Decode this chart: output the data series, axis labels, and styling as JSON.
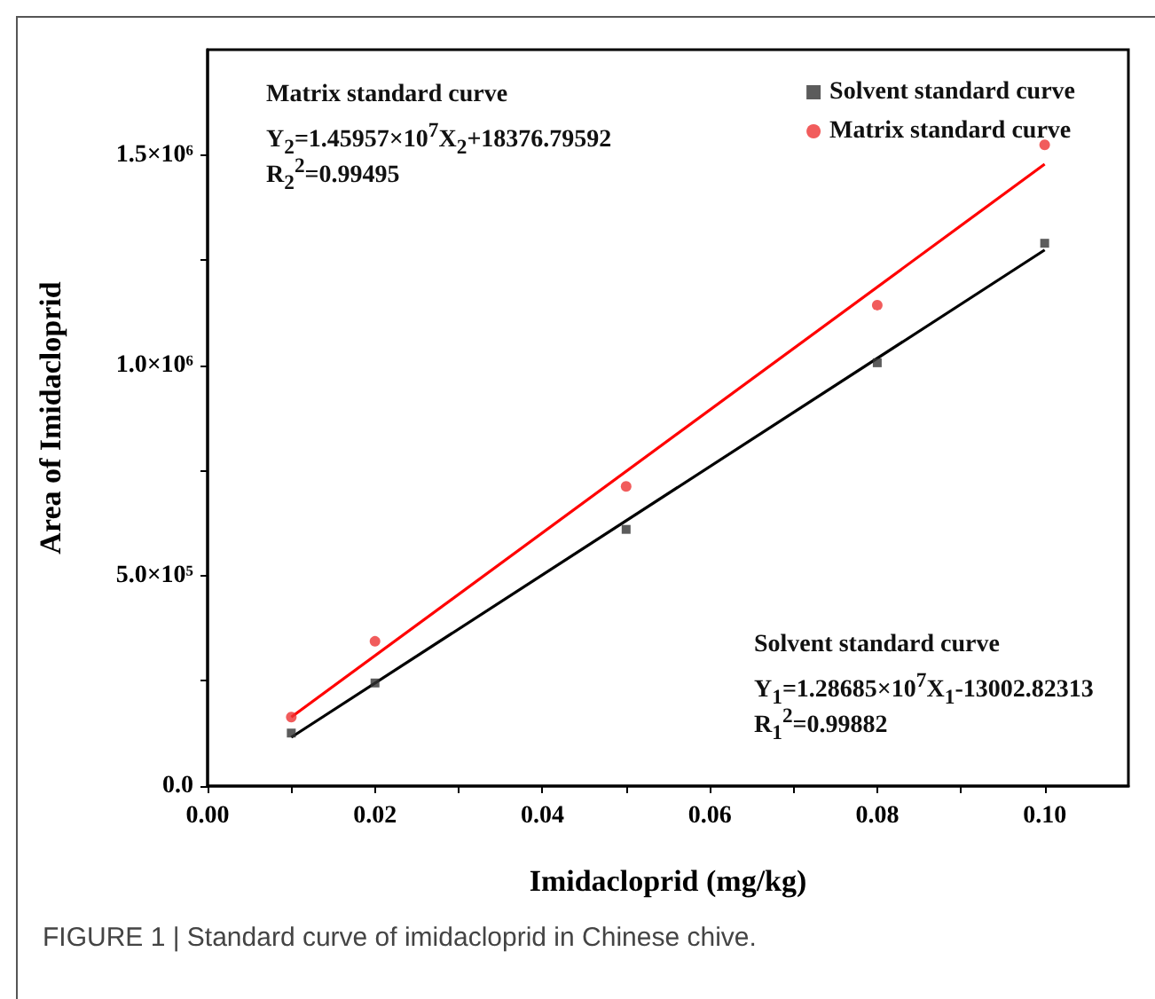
{
  "chart_data": {
    "type": "scatter",
    "xlabel": "Imidacloprid (mg/kg)",
    "ylabel": "Area of Imidacloprid",
    "x": [
      0.01,
      0.02,
      0.05,
      0.08,
      0.1
    ],
    "series": [
      {
        "name": "Solvent standard curve",
        "color": "#333333",
        "marker": "square",
        "values": [
          126000,
          245000,
          610000,
          1006000,
          1290000
        ]
      },
      {
        "name": "Matrix standard curve",
        "color": "#ee3333",
        "marker": "circle",
        "values": [
          164000,
          344000,
          712000,
          1143000,
          1524000
        ]
      },
      {
        "type": "line",
        "color": "#000000",
        "values": [
          116000,
          null,
          null,
          null,
          1274000
        ]
      },
      {
        "type": "line",
        "color": "#ff0000",
        "values": [
          164000,
          null,
          null,
          null,
          1478000
        ]
      }
    ],
    "xlim": [
      0,
      0.11
    ],
    "xticks": [
      {
        "value": 0,
        "label": "0.00"
      },
      {
        "value": 0.01,
        "label": null
      },
      {
        "value": 0.02,
        "label": "0.02"
      },
      {
        "value": 0.03,
        "label": null
      },
      {
        "value": 0.04,
        "label": "0.04"
      },
      {
        "value": 0.05,
        "label": null
      },
      {
        "value": 0.06,
        "label": "0.06"
      },
      {
        "value": 0.07,
        "label": null
      },
      {
        "value": 0.08,
        "label": "0.08"
      },
      {
        "value": 0.09,
        "label": null
      },
      {
        "value": 0.1,
        "label": "0.10"
      }
    ],
    "ylim": [
      0,
      1750000
    ],
    "yticks": [
      {
        "value": 0,
        "label": "0.0"
      },
      {
        "value": 250000,
        "label": null
      },
      {
        "value": 500000,
        "label": "5.0×10⁵"
      },
      {
        "value": 750000,
        "label": null
      },
      {
        "value": 1000000,
        "label": "1.0×10⁶"
      },
      {
        "value": 1250000,
        "label": null
      },
      {
        "value": 1500000,
        "label": "1.5×10⁶"
      }
    ],
    "grid": false,
    "legend": "top right",
    "annotations": [
      "Matrix standard curve",
      "Y$_{2}$=1.45957×10$^{7}$X$_{2}$+18376.79592",
      "R$_{2}$$^{2}$=0.99495",
      "Solvent standard curve",
      "Y$_{1}$=1.28685×10$^{7}$X$_{1}$-13002.82313",
      "R$_{1}$$^{2}$=0.99882",
      "FIGURE 1 | Standard curve of imidacloprid in Chinese chive."
    ]
  }
}
